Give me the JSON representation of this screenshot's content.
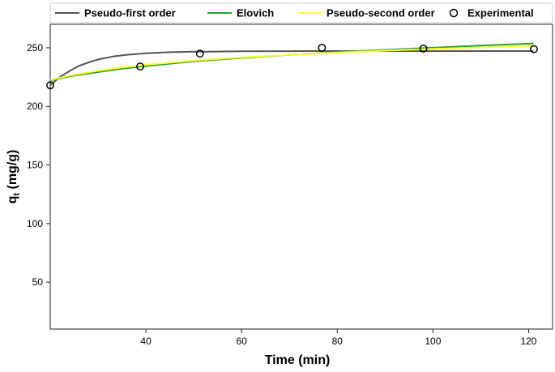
{
  "chart_data": {
    "type": "line",
    "xlabel": "Time (min)",
    "ylabel_main": "q",
    "ylabel_sub": "t",
    "ylabel_unit": " (mg/g)",
    "xlim": [
      20,
      125
    ],
    "ylim": [
      10,
      270
    ],
    "xticks": [
      40,
      60,
      80,
      100,
      120
    ],
    "yticks": [
      50,
      100,
      150,
      200,
      250
    ],
    "grid": false,
    "legend_position": "top",
    "series": [
      {
        "name": "Pseudo-first order",
        "kind": "line",
        "color": "#555555",
        "x": [
          20,
          22,
          24,
          26,
          28,
          30,
          33,
          36,
          40,
          45,
          50,
          55,
          60,
          70,
          80,
          90,
          100,
          110,
          121
        ],
        "y": [
          218,
          225,
          230,
          234.5,
          237.5,
          240,
          242.5,
          244,
          245.3,
          246.2,
          246.6,
          246.8,
          247,
          247.1,
          247.2,
          247.2,
          247.2,
          247.2,
          247.2
        ]
      },
      {
        "name": "Elovich",
        "kind": "line",
        "color": "#2e9e2e",
        "x": [
          20,
          25,
          30,
          35,
          40,
          50,
          60,
          70,
          80,
          90,
          100,
          110,
          121
        ],
        "y": [
          222,
          226.3,
          229.3,
          232.1,
          234.4,
          238.3,
          241.3,
          243.9,
          246.3,
          248.2,
          250,
          251.8,
          253.7
        ]
      },
      {
        "name": "Pseudo-second order",
        "kind": "line",
        "color": "#ffff33",
        "x": [
          20,
          25,
          30,
          35,
          40,
          50,
          60,
          70,
          80,
          90,
          100,
          110,
          121
        ],
        "y": [
          222.5,
          227,
          230.4,
          233.2,
          235.5,
          239.1,
          241.8,
          244,
          245.9,
          247.5,
          249,
          250.3,
          251.8
        ]
      },
      {
        "name": "Experimental",
        "kind": "scatter",
        "color": "#000000",
        "x": [
          20,
          38.8,
          51.3,
          76.8,
          98,
          121.1
        ],
        "y": [
          218,
          234,
          245,
          250,
          249.3,
          248.8
        ]
      }
    ]
  }
}
